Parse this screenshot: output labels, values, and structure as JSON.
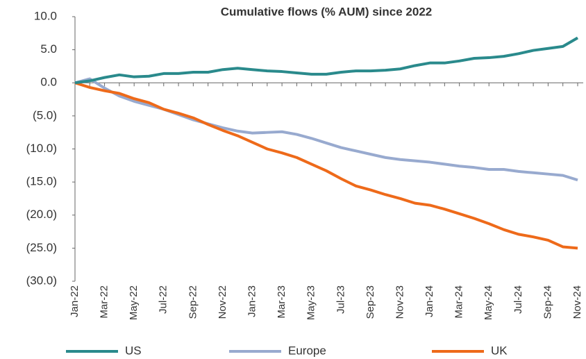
{
  "chart_data": {
    "type": "line",
    "title": "Cumulative flows (% AUM) since 2022",
    "categories": [
      "Jan-22",
      null,
      "Mar-22",
      null,
      "May-22",
      null,
      "Jul-22",
      null,
      "Sep-22",
      null,
      "Nov-22",
      null,
      "Jan-23",
      null,
      "Mar-23",
      null,
      "May-23",
      null,
      "Jul-23",
      null,
      "Sep-23",
      null,
      "Nov-23",
      null,
      "Jan-24",
      null,
      "Mar-24",
      null,
      "May-24",
      null,
      "Jul-24",
      null,
      "Sep-24",
      null,
      "Nov-24"
    ],
    "series": [
      {
        "name": "US",
        "color": "#2a8a8c",
        "values": [
          0,
          0.3,
          0.8,
          1.2,
          0.9,
          1.0,
          1.4,
          1.4,
          1.6,
          1.6,
          2.0,
          2.2,
          2.0,
          1.8,
          1.7,
          1.5,
          1.3,
          1.3,
          1.6,
          1.8,
          1.8,
          1.9,
          2.1,
          2.6,
          3.0,
          3.0,
          3.3,
          3.7,
          3.8,
          4.0,
          4.4,
          4.9,
          5.2,
          5.5,
          6.8
        ]
      },
      {
        "name": "Europe",
        "color": "#98aacf",
        "values": [
          0,
          0.6,
          -0.8,
          -2.0,
          -2.8,
          -3.4,
          -4.0,
          -4.8,
          -5.6,
          -6.2,
          -6.8,
          -7.3,
          -7.6,
          -7.5,
          -7.4,
          -7.8,
          -8.4,
          -9.1,
          -9.8,
          -10.3,
          -10.8,
          -11.3,
          -11.6,
          -11.8,
          -12.0,
          -12.3,
          -12.6,
          -12.8,
          -13.1,
          -13.1,
          -13.4,
          -13.6,
          -13.8,
          -14.0,
          -14.7
        ]
      },
      {
        "name": "UK",
        "color": "#ee6a1a",
        "values": [
          0,
          -0.7,
          -1.2,
          -1.6,
          -2.4,
          -3.0,
          -4.0,
          -4.6,
          -5.3,
          -6.3,
          -7.2,
          -8.0,
          -9.0,
          -10.0,
          -10.6,
          -11.3,
          -12.3,
          -13.3,
          -14.5,
          -15.6,
          -16.2,
          -16.9,
          -17.5,
          -18.2,
          -18.5,
          -19.1,
          -19.8,
          -20.5,
          -21.3,
          -22.2,
          -22.9,
          -23.3,
          -23.8,
          -24.8,
          -25.0
        ]
      }
    ],
    "ylim": [
      -30,
      10
    ],
    "yticks": [
      {
        "value": 10,
        "label": "10.0"
      },
      {
        "value": 5,
        "label": "5.0"
      },
      {
        "value": 0,
        "label": "0.0"
      },
      {
        "value": -5,
        "label": "(5.0)"
      },
      {
        "value": -10,
        "label": "(10.0)"
      },
      {
        "value": -15,
        "label": "(15.0)"
      },
      {
        "value": -20,
        "label": "(20.0)"
      },
      {
        "value": -25,
        "label": "(25.0)"
      },
      {
        "value": -30,
        "label": "(30.0)"
      }
    ],
    "grid": false,
    "legend": "bottom"
  }
}
